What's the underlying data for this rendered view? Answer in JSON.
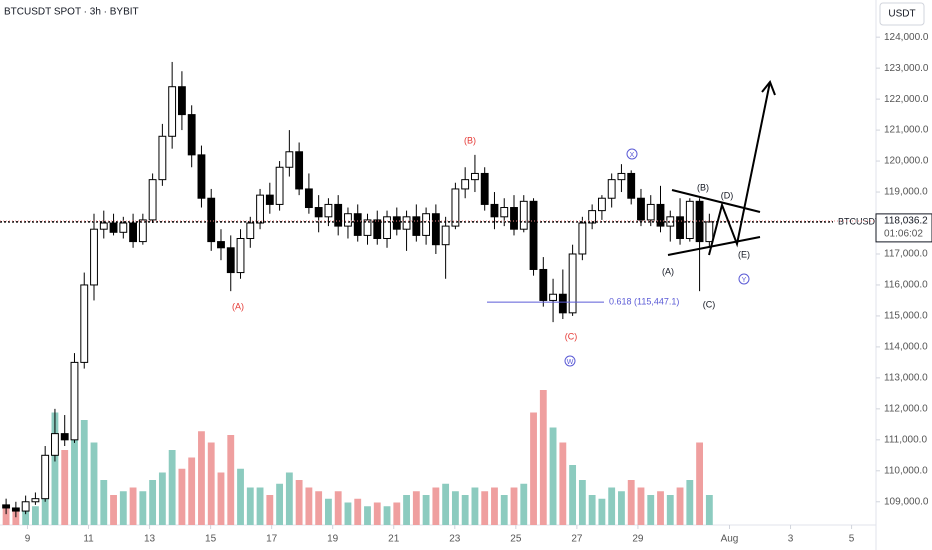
{
  "header": "BTCUSDT SPOT · 3h · BYBIT",
  "currency": "USDT",
  "chart_data": {
    "type": "candlestick",
    "up_color": "#ffffff",
    "down_color": "#000000",
    "volume_up_color": "#8ccbbf",
    "volume_down_color": "#ef9f9f",
    "xlim": [
      8.1,
      36.8
    ],
    "xticks": [
      9,
      11,
      13,
      15,
      17,
      19,
      21,
      23,
      25,
      27,
      29,
      {
        "value": 32,
        "label": "Aug"
      },
      {
        "value": 34,
        "label": "3"
      },
      {
        "value": 36,
        "label": "5"
      }
    ],
    "ylim": [
      108250,
      125200
    ],
    "yticks": [
      {
        "value": 109000,
        "label": "109,000.0"
      },
      {
        "value": 110000,
        "label": "110,000.0"
      },
      {
        "value": 111000,
        "label": "111,000.0"
      },
      {
        "value": 112000,
        "label": "112,000.0"
      },
      {
        "value": 113000,
        "label": "113,000.0"
      },
      {
        "value": 114000,
        "label": "114,000.0"
      },
      {
        "value": 115000,
        "label": "115,000.0"
      },
      {
        "value": 116000,
        "label": "116,000.0"
      },
      {
        "value": 117000,
        "label": "117,000.0"
      },
      {
        "value": 118000,
        "label": "118,000.0"
      },
      {
        "value": 119000,
        "label": "119,000.0"
      },
      {
        "value": 120000,
        "label": "120,000.0"
      },
      {
        "value": 121000,
        "label": "121,000.0"
      },
      {
        "value": 122000,
        "label": "122,000.0"
      },
      {
        "value": 123000,
        "label": "123,000.0"
      },
      {
        "value": 124000,
        "label": "124,000.0"
      }
    ],
    "x": [
      8.3,
      8.62,
      8.94,
      9.26,
      9.58,
      9.9,
      10.22,
      10.54,
      10.86,
      11.18,
      11.5,
      11.82,
      12.14,
      12.46,
      12.78,
      13.1,
      13.42,
      13.74,
      14.06,
      14.38,
      14.7,
      15.02,
      15.34,
      15.66,
      15.98,
      16.3,
      16.62,
      16.94,
      17.26,
      17.58,
      17.9,
      18.22,
      18.54,
      18.86,
      19.18,
      19.5,
      19.82,
      20.14,
      20.46,
      20.78,
      21.1,
      21.42,
      21.74,
      22.06,
      22.38,
      22.7,
      23.02,
      23.34,
      23.66,
      23.98,
      24.3,
      24.62,
      24.94,
      25.26,
      25.58,
      25.9,
      26.22,
      26.54,
      26.86,
      27.18,
      27.5,
      27.82,
      28.14,
      28.46,
      28.78,
      29.1,
      29.42,
      29.74,
      30.06,
      30.38,
      30.7,
      31.02,
      31.34
    ],
    "open": [
      108900,
      108800,
      108700,
      109000,
      109100,
      110500,
      111200,
      111000,
      113500,
      116000,
      117800,
      118000,
      117700,
      118000,
      117400,
      118100,
      119400,
      120800,
      122400,
      121500,
      120200,
      118800,
      117400,
      117200,
      116400,
      117500,
      118000,
      118900,
      118600,
      119800,
      120300,
      119100,
      118500,
      118200,
      118600,
      117900,
      118300,
      117600,
      118100,
      117500,
      118200,
      117800,
      118200,
      117600,
      118300,
      117300,
      117900,
      119100,
      119400,
      119600,
      118600,
      118200,
      118500,
      117800,
      118700,
      116500,
      115500,
      115700,
      115100,
      117000,
      118000,
      118400,
      118800,
      119400,
      119600,
      118800,
      118100,
      118600,
      117900,
      118200,
      117500,
      118700,
      117400
    ],
    "high": [
      109100,
      109000,
      109200,
      109300,
      110800,
      112000,
      111800,
      113800,
      116400,
      118300,
      118400,
      118300,
      118200,
      118300,
      118300,
      119600,
      121200,
      123200,
      122900,
      121800,
      120500,
      119100,
      117800,
      117600,
      117800,
      118200,
      119100,
      119300,
      120000,
      121000,
      120600,
      119600,
      118900,
      118800,
      118900,
      118500,
      118600,
      118300,
      118400,
      118400,
      118500,
      118400,
      118600,
      118500,
      118600,
      118200,
      119300,
      119800,
      120200,
      119800,
      119000,
      118800,
      118900,
      118900,
      118800,
      116900,
      116200,
      116500,
      117300,
      118200,
      118600,
      118900,
      119600,
      119900,
      119700,
      119100,
      118900,
      119200,
      118400,
      118800,
      118800,
      118800,
      118300
    ],
    "low": [
      108600,
      108500,
      108600,
      108900,
      109000,
      110300,
      110800,
      110900,
      113300,
      115500,
      117500,
      117600,
      117500,
      117200,
      117300,
      118000,
      119200,
      120400,
      121000,
      119800,
      118500,
      117100,
      116800,
      115800,
      116200,
      117200,
      117800,
      118300,
      118400,
      119500,
      118900,
      118300,
      117700,
      117900,
      117600,
      117500,
      117400,
      117300,
      117300,
      117200,
      117600,
      117100,
      117400,
      117300,
      117000,
      116200,
      117800,
      118800,
      119000,
      118400,
      117800,
      117900,
      117600,
      117700,
      116300,
      115300,
      114800,
      114900,
      115000,
      116800,
      117800,
      118100,
      118500,
      119000,
      118600,
      117900,
      117900,
      117700,
      117400,
      117300,
      117400,
      115800,
      117200
    ],
    "close": [
      108800,
      108700,
      109000,
      109100,
      110500,
      111200,
      111000,
      113500,
      116000,
      117800,
      118000,
      117700,
      118000,
      117400,
      118100,
      119400,
      120800,
      122400,
      121500,
      120200,
      118800,
      117400,
      117200,
      116400,
      117500,
      118000,
      118900,
      118600,
      119800,
      120300,
      119100,
      118500,
      118200,
      118600,
      117900,
      118300,
      117600,
      118100,
      117500,
      118200,
      117800,
      118200,
      117600,
      118300,
      117300,
      117900,
      119100,
      119400,
      119600,
      118600,
      118200,
      118500,
      117800,
      118700,
      116500,
      115500,
      115700,
      115100,
      117000,
      118000,
      118400,
      118800,
      119400,
      119600,
      118800,
      118100,
      118600,
      117900,
      118200,
      117500,
      118700,
      117400,
      118036.2
    ],
    "volume": [
      5,
      4,
      6,
      5,
      18,
      30,
      20,
      35,
      28,
      22,
      12,
      8,
      9,
      10,
      9,
      12,
      14,
      20,
      15,
      18,
      25,
      22,
      14,
      24,
      15,
      10,
      10,
      8,
      11,
      14,
      12,
      10,
      9,
      7,
      9,
      6,
      7,
      5,
      6,
      5,
      6,
      8,
      9,
      8,
      10,
      11,
      9,
      8,
      10,
      9,
      10,
      8,
      10,
      11,
      30,
      36,
      26,
      22,
      16,
      12,
      8,
      7,
      10,
      9,
      12,
      10,
      8,
      9,
      8,
      10,
      12,
      22,
      8
    ],
    "last_price": {
      "value": 118036.2,
      "label": "118,036.2"
    },
    "symbol": "BTCUSDT",
    "countdown": "01:06:02",
    "fib_level": {
      "value": 115447.1,
      "label": "0.618 (115,447.1)"
    },
    "annotations": [
      "(A)",
      "(B)",
      "(C)",
      "W",
      "X",
      "Y",
      "(A)",
      "(B)",
      "(C)",
      "(D)",
      "(E)"
    ]
  }
}
